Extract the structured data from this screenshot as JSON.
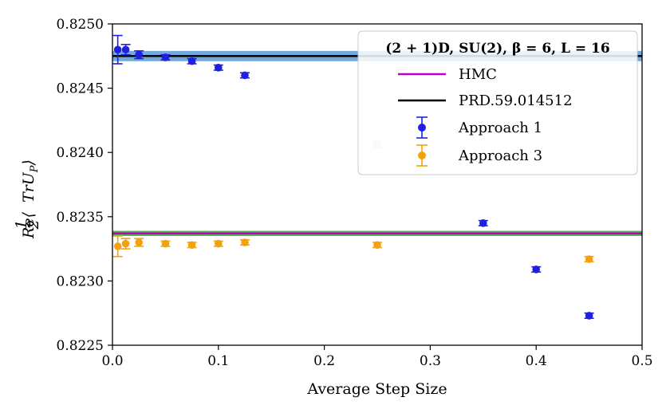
{
  "chart_data": {
    "type": "scatter",
    "xlabel": "Average Step Size",
    "ylabel": "Re⟨½TrU_P⟩",
    "ylabel_parts": {
      "prefix": "Re⟨",
      "num": "1",
      "den": "2",
      "body": "TrU",
      "sub": "P",
      "suffix": "⟩"
    },
    "xlim": [
      0.0,
      0.5
    ],
    "ylim": [
      0.8225,
      0.825
    ],
    "xticks": [
      0.0,
      0.1,
      0.2,
      0.3,
      0.4,
      0.5
    ],
    "xtick_labels": [
      "0.0",
      "0.1",
      "0.2",
      "0.3",
      "0.4",
      "0.5"
    ],
    "yticks": [
      0.8225,
      0.823,
      0.8235,
      0.824,
      0.8245,
      0.825
    ],
    "ytick_labels": [
      "0.8225",
      "0.8230",
      "0.8235",
      "0.8240",
      "0.8245",
      "0.8250"
    ],
    "grid": false,
    "legend": {
      "position": "top-right",
      "title": "(2 + 1)D, SU(2), β = 6, L = 16",
      "entries": [
        "HMC",
        "PRD.59.014512",
        "Approach 1",
        "Approach 3"
      ]
    },
    "reference_lines": [
      {
        "name": "HMC",
        "y": 0.82337,
        "band": 2e-05,
        "color": "#c000c0",
        "band_color": "#3ca03c"
      },
      {
        "name": "PRD.59.014512",
        "y": 0.82475,
        "band": 4e-05,
        "color": "#000000",
        "band_color": "#5b9bd5"
      }
    ],
    "series": [
      {
        "name": "Approach 1",
        "color": "#1f1fe0",
        "x": [
          0.005,
          0.0125,
          0.025,
          0.05,
          0.075,
          0.1,
          0.125,
          0.25,
          0.35,
          0.4,
          0.45
        ],
        "y": [
          0.8248,
          0.8248,
          0.82476,
          0.82474,
          0.82471,
          0.82466,
          0.8246,
          0.82406,
          0.82345,
          0.82309,
          0.82273
        ],
        "err": [
          0.00011,
          4e-05,
          3e-05,
          2e-05,
          2e-05,
          2e-05,
          2e-05,
          2e-05,
          2e-05,
          2e-05,
          2e-05
        ],
        "faded": [
          false,
          false,
          false,
          false,
          false,
          false,
          false,
          true,
          false,
          false,
          false
        ]
      },
      {
        "name": "Approach 3",
        "color": "#f5a10e",
        "x": [
          0.005,
          0.0125,
          0.025,
          0.05,
          0.075,
          0.1,
          0.125,
          0.25,
          0.45
        ],
        "y": [
          0.82327,
          0.82329,
          0.8233,
          0.82329,
          0.82328,
          0.82329,
          0.8233,
          0.82328,
          0.82317
        ],
        "err": [
          8e-05,
          4e-05,
          3e-05,
          2e-05,
          2e-05,
          2e-05,
          2e-05,
          2e-05,
          2e-05
        ],
        "faded": [
          false,
          false,
          false,
          false,
          false,
          false,
          false,
          false,
          false
        ]
      }
    ]
  }
}
